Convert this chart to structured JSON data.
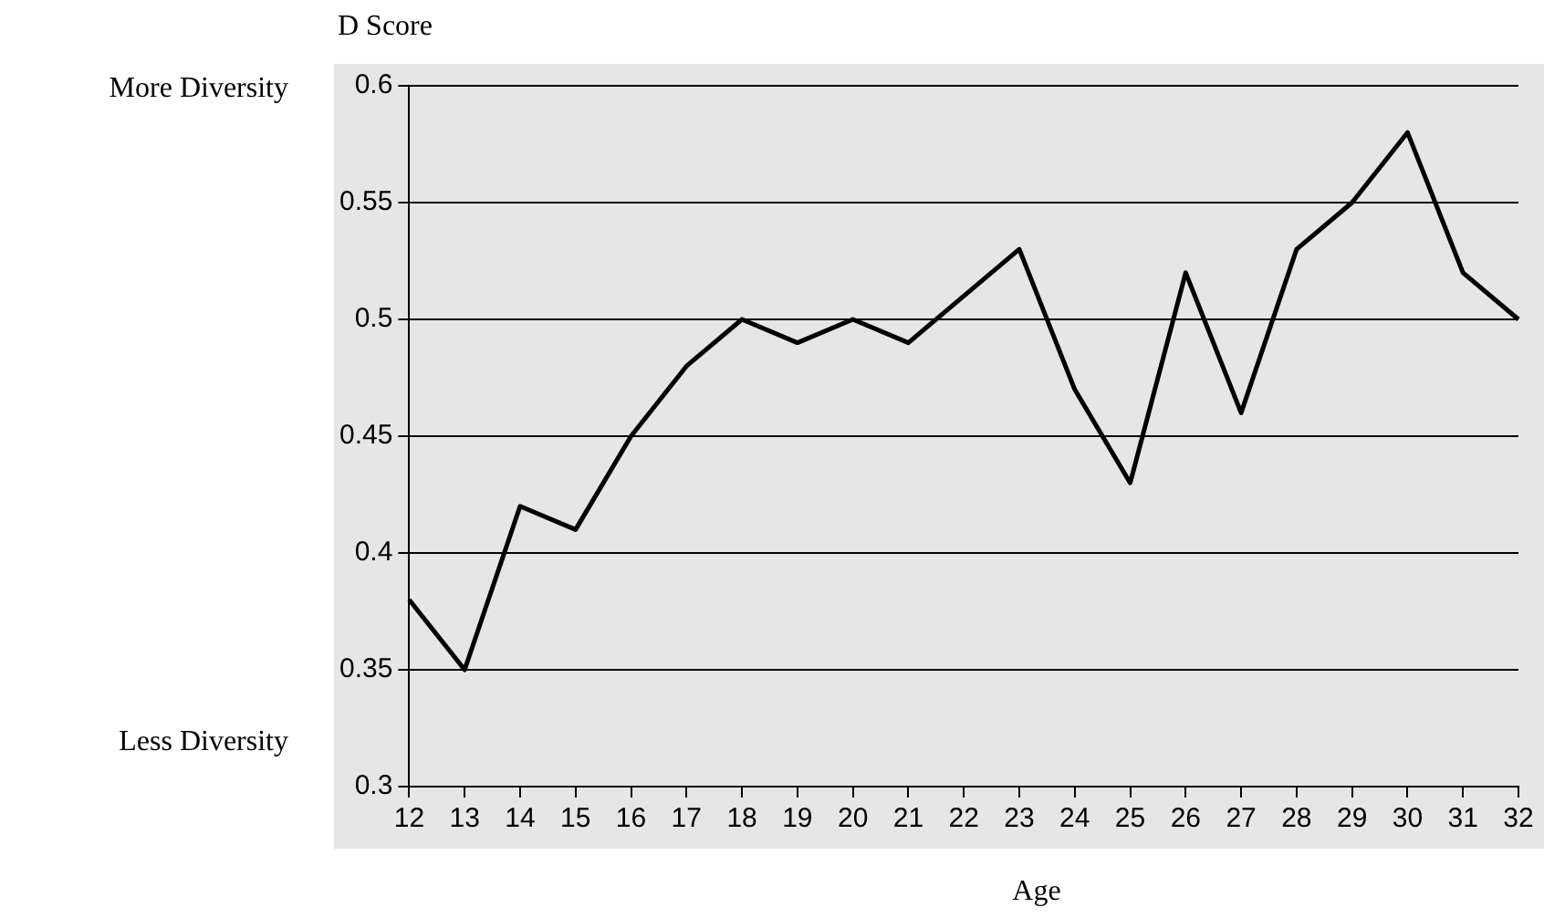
{
  "chart_data": {
    "type": "line",
    "ylabel": "D Score",
    "xlabel": "Age",
    "annotations": [
      "More Diversity",
      "Less Diversity"
    ],
    "categories": [
      "12",
      "13",
      "14",
      "15",
      "16",
      "17",
      "18",
      "19",
      "20",
      "21",
      "22",
      "23",
      "24",
      "25",
      "26",
      "27",
      "28",
      "29",
      "30",
      "31",
      "32"
    ],
    "series": [
      {
        "color": "#000000",
        "values": [
          0.38,
          0.35,
          0.42,
          0.41,
          0.45,
          0.48,
          0.5,
          0.49,
          0.5,
          0.49,
          0.51,
          0.53,
          0.47,
          0.43,
          0.52,
          0.46,
          0.53,
          0.55,
          0.58,
          0.52,
          0.5
        ]
      }
    ],
    "ylim": [
      0.3,
      0.6
    ],
    "yticks": [
      0.3,
      0.35,
      0.4,
      0.45,
      0.5,
      0.55,
      0.6
    ],
    "grid": "y",
    "legend": false,
    "marker": "none",
    "line_style": "solid"
  }
}
